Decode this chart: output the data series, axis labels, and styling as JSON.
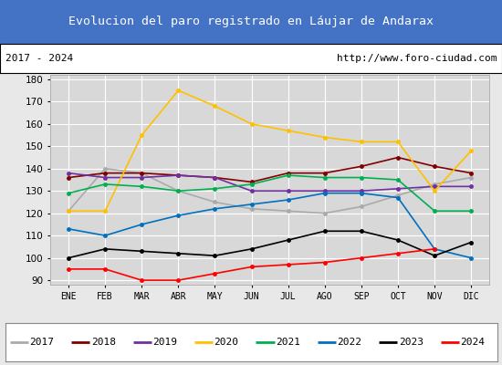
{
  "title": "Evolucion del paro registrado en Láujar de Andarax",
  "title_color": "#ffffff",
  "title_bg_color": "#4472c4",
  "subtitle_left": "2017 - 2024",
  "subtitle_right": "http://www.foro-ciudad.com",
  "x_labels": [
    "ENE",
    "FEB",
    "MAR",
    "ABR",
    "MAY",
    "JUN",
    "JUL",
    "AGO",
    "SEP",
    "OCT",
    "NOV",
    "DIC"
  ],
  "ylim": [
    88,
    182
  ],
  "yticks": [
    90,
    100,
    110,
    120,
    130,
    140,
    150,
    160,
    170,
    180
  ],
  "series": {
    "2017": {
      "color": "#aaaaaa",
      "values": [
        121,
        140,
        138,
        130,
        125,
        122,
        121,
        120,
        123,
        128,
        133,
        136
      ]
    },
    "2018": {
      "color": "#800000",
      "values": [
        136,
        138,
        138,
        137,
        136,
        134,
        138,
        138,
        141,
        145,
        141,
        138
      ]
    },
    "2019": {
      "color": "#7030a0",
      "values": [
        138,
        136,
        136,
        137,
        136,
        130,
        130,
        130,
        130,
        131,
        132,
        132
      ]
    },
    "2020": {
      "color": "#ffc000",
      "values": [
        121,
        121,
        155,
        175,
        168,
        160,
        157,
        154,
        152,
        152,
        130,
        148
      ]
    },
    "2021": {
      "color": "#00b050",
      "values": [
        129,
        133,
        132,
        130,
        131,
        133,
        137,
        136,
        136,
        135,
        121,
        121
      ]
    },
    "2022": {
      "color": "#0070c0",
      "values": [
        113,
        110,
        115,
        119,
        122,
        124,
        126,
        129,
        129,
        127,
        104,
        100
      ]
    },
    "2023": {
      "color": "#000000",
      "values": [
        100,
        104,
        103,
        102,
        101,
        104,
        108,
        112,
        112,
        108,
        101,
        107
      ]
    },
    "2024": {
      "color": "#ff0000",
      "values": [
        95,
        95,
        90,
        90,
        93,
        96,
        97,
        98,
        100,
        102,
        104,
        null
      ]
    }
  },
  "bg_color": "#e8e8e8",
  "plot_bg_color": "#d8d8d8",
  "grid_color": "#ffffff",
  "figure_width": 5.5,
  "figure_height": 4.0,
  "figure_dpi": 100
}
